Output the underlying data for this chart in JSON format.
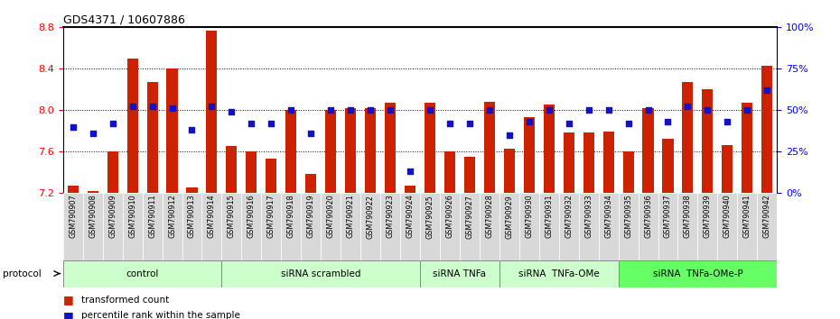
{
  "title": "GDS4371 / 10607886",
  "samples": [
    "GSM790907",
    "GSM790908",
    "GSM790909",
    "GSM790910",
    "GSM790911",
    "GSM790912",
    "GSM790913",
    "GSM790914",
    "GSM790915",
    "GSM790916",
    "GSM790917",
    "GSM790918",
    "GSM790919",
    "GSM790920",
    "GSM790921",
    "GSM790922",
    "GSM790923",
    "GSM790924",
    "GSM790925",
    "GSM790926",
    "GSM790927",
    "GSM790928",
    "GSM790929",
    "GSM790930",
    "GSM790931",
    "GSM790932",
    "GSM790933",
    "GSM790934",
    "GSM790935",
    "GSM790936",
    "GSM790937",
    "GSM790938",
    "GSM790939",
    "GSM790940",
    "GSM790941",
    "GSM790942"
  ],
  "bar_values": [
    7.27,
    7.22,
    7.6,
    8.5,
    8.27,
    8.4,
    7.25,
    8.77,
    7.65,
    7.6,
    7.53,
    8.0,
    7.38,
    8.0,
    8.02,
    8.02,
    8.07,
    7.27,
    8.07,
    7.6,
    7.55,
    8.08,
    7.63,
    7.93,
    8.05,
    7.78,
    7.78,
    7.79,
    7.6,
    8.02,
    7.72,
    8.27,
    8.2,
    7.66,
    8.07,
    8.43
  ],
  "percentile_values": [
    40,
    36,
    42,
    52,
    52,
    51,
    38,
    52,
    49,
    42,
    42,
    50,
    36,
    50,
    50,
    50,
    50,
    13,
    50,
    42,
    42,
    50,
    35,
    43,
    50,
    42,
    50,
    50,
    42,
    50,
    43,
    52,
    50,
    43,
    50,
    62
  ],
  "groups": [
    {
      "label": "control",
      "start": 0,
      "end": 7
    },
    {
      "label": "siRNA scrambled",
      "start": 8,
      "end": 17
    },
    {
      "label": "siRNA TNFa",
      "start": 18,
      "end": 21
    },
    {
      "label": "siRNA  TNFa-OMe",
      "start": 22,
      "end": 27
    },
    {
      "label": "siRNA  TNFa-OMe-P",
      "start": 28,
      "end": 35
    }
  ],
  "group_colors": [
    "#ccffcc",
    "#ccffcc",
    "#ccffcc",
    "#ccffcc",
    "#66ff66"
  ],
  "ylim_left": [
    7.2,
    8.8
  ],
  "ylim_right": [
    0,
    100
  ],
  "yticks_left": [
    7.2,
    7.6,
    8.0,
    8.4,
    8.8
  ],
  "yticks_right": [
    0,
    25,
    50,
    75,
    100
  ],
  "bar_color": "#cc2200",
  "dot_color": "#1111cc",
  "legend_bar_label": "transformed count",
  "legend_dot_label": "percentile rank within the sample",
  "protocol_label": "protocol"
}
